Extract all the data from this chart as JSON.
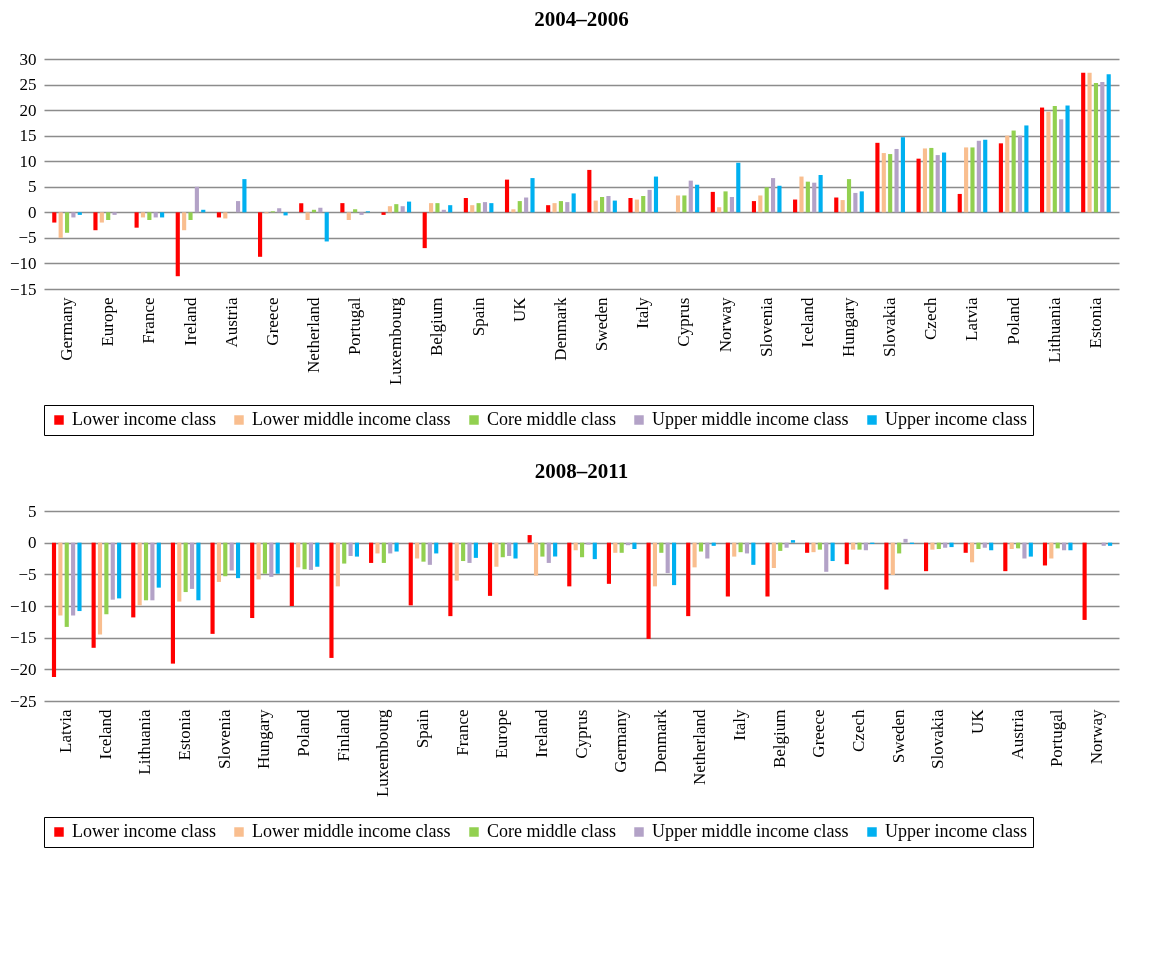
{
  "chart_data": [
    {
      "type": "bar",
      "title": "2004–2006",
      "categories": [
        "Germany",
        "Europe",
        "France",
        "Ireland",
        "Austria",
        "Greece",
        "Netherland",
        "Portugal",
        "Luxembourg",
        "Belgium",
        "Spain",
        "UK",
        "Denmark",
        "Sweden",
        "Italy",
        "Cyprus",
        "Norway",
        "Slovenia",
        "Iceland",
        "Hungary",
        "Slovakia",
        "Czech",
        "Latvia",
        "Poland",
        "Lithuania",
        "Estonia"
      ],
      "series": [
        {
          "name": "Lower income class",
          "color": "#ff0000",
          "values": [
            -2,
            -3.5,
            -3,
            -12.5,
            -1,
            -8.7,
            1.8,
            1.8,
            -0.5,
            -7,
            2.8,
            6.4,
            1.4,
            8.3,
            2.8,
            0,
            4,
            2.2,
            2.5,
            2.9,
            13.6,
            10.5,
            3.6,
            13.5,
            20.5,
            27.3
          ]
        },
        {
          "name": "Lower middle income class",
          "color": "#f9be8f",
          "values": [
            -5,
            -2,
            -1,
            -3.5,
            -1.2,
            -0.2,
            -1.5,
            -1.5,
            1.2,
            1.8,
            1.4,
            0.6,
            1.8,
            2.3,
            2.5,
            3.3,
            1,
            3.3,
            7,
            2.4,
            11.6,
            12.5,
            12.7,
            15,
            19.7,
            27.3
          ]
        },
        {
          "name": "Core middle class",
          "color": "#92d050",
          "values": [
            -4,
            -1.5,
            -1.5,
            -1.5,
            0,
            0.2,
            0.5,
            0.6,
            1.6,
            1.8,
            1.8,
            2.2,
            2.2,
            3,
            3.2,
            3.3,
            4.1,
            4.9,
            6,
            6.5,
            11.4,
            12.6,
            12.7,
            16,
            20.8,
            25.3
          ]
        },
        {
          "name": "Upper middle income class",
          "color": "#b3a2c7",
          "values": [
            -1,
            -0.5,
            -1,
            5,
            2.2,
            0.8,
            0.9,
            -0.5,
            1.2,
            0.5,
            2,
            2.9,
            2,
            3.2,
            4.4,
            6.2,
            3,
            6.7,
            5.8,
            3.8,
            12.4,
            11.2,
            14,
            15,
            18.2,
            25.5
          ]
        },
        {
          "name": "Upper income class",
          "color": "#00b0f0",
          "values": [
            -0.5,
            0,
            -1,
            0.5,
            6.5,
            -0.6,
            -5.7,
            0.2,
            2.1,
            1.4,
            1.8,
            6.7,
            3.7,
            2.3,
            7,
            5.4,
            9.7,
            5.2,
            7.3,
            4.1,
            14.7,
            11.7,
            14.2,
            17,
            20.9,
            27
          ]
        }
      ],
      "ylim": [
        -15,
        30
      ],
      "yticks": [
        -15,
        -10,
        -5,
        0,
        5,
        10,
        15,
        20,
        25,
        30
      ],
      "grid": "y",
      "legend": "bottom"
    },
    {
      "type": "bar",
      "title": "2008–2011",
      "categories": [
        "Latvia",
        "Iceland",
        "Lithuania",
        "Estonia",
        "Slovenia",
        "Hungary",
        "Poland",
        "Finland",
        "Luxembourg",
        "Spain",
        "France",
        "Europe",
        "Ireland",
        "Cyprus",
        "Germany",
        "Denmark",
        "Netherland",
        "Italy",
        "Belgium",
        "Greece",
        "Czech",
        "Sweden",
        "Slovakia",
        "UK",
        "Austria",
        "Portugal",
        "Norway"
      ],
      "series": [
        {
          "name": "Lower income class",
          "color": "#ff0000",
          "values": [
            -21.2,
            -16.6,
            -11.8,
            -19.1,
            -14.4,
            -11.9,
            -10,
            -18.2,
            -3.2,
            -9.9,
            -11.6,
            -8.4,
            1.2,
            -6.9,
            -6.5,
            -15.2,
            -11.6,
            -8.5,
            -8.5,
            -1.6,
            -3.4,
            -7.4,
            -4.5,
            -1.6,
            -4.5,
            -3.6,
            -12.2
          ]
        },
        {
          "name": "Lower middle income class",
          "color": "#f9be8f",
          "values": [
            -11.5,
            -14.5,
            -9.9,
            -9.3,
            -6.2,
            -5.8,
            -3.9,
            -6.9,
            -1.7,
            -2.5,
            -6,
            -3.8,
            -5.2,
            -1.2,
            -1.6,
            -6.9,
            -3.9,
            -2.2,
            -4,
            -1.5,
            -1.1,
            -5.1,
            -1.1,
            -3.1,
            -1,
            -2.5,
            0
          ]
        },
        {
          "name": "Core middle class",
          "color": "#92d050",
          "values": [
            -13.3,
            -11.3,
            -9.1,
            -7.8,
            -5.3,
            -4.9,
            -4.2,
            -3.3,
            -3.2,
            -3,
            -2.9,
            -2.3,
            -2.2,
            -2.3,
            -1.6,
            -1.6,
            -1.4,
            -1.5,
            -1.3,
            -1.1,
            -1.1,
            -1.7,
            -1,
            -1,
            -0.9,
            -0.9,
            0
          ]
        },
        {
          "name": "Upper middle income class",
          "color": "#b3a2c7",
          "values": [
            -11.5,
            -9,
            -9.1,
            -7.3,
            -4.4,
            -5.4,
            -4.3,
            -2.1,
            -1.7,
            -3.5,
            -3.2,
            -2.1,
            -3.2,
            -0.3,
            -0.4,
            -4.8,
            -2.5,
            -1.7,
            -0.8,
            -4.6,
            -1.2,
            0.6,
            -0.8,
            -0.8,
            -2.5,
            -1.2,
            -0.5
          ]
        },
        {
          "name": "Upper income class",
          "color": "#00b0f0",
          "values": [
            -10.8,
            -8.8,
            -7.1,
            -9.1,
            -5.6,
            -4.9,
            -3.8,
            -2.2,
            -1.4,
            -1.7,
            -2.4,
            -2.5,
            -2.2,
            -2.6,
            -1,
            -6.7,
            -0.5,
            -3.5,
            0.4,
            -2.9,
            -0.2,
            -0.2,
            -0.7,
            -1.2,
            -2.2,
            -1.2,
            -0.5
          ]
        }
      ],
      "ylim": [
        -25,
        5
      ],
      "yticks": [
        -25,
        -20,
        -15,
        -10,
        -5,
        0,
        5
      ],
      "grid": "y",
      "legend": "bottom"
    }
  ]
}
